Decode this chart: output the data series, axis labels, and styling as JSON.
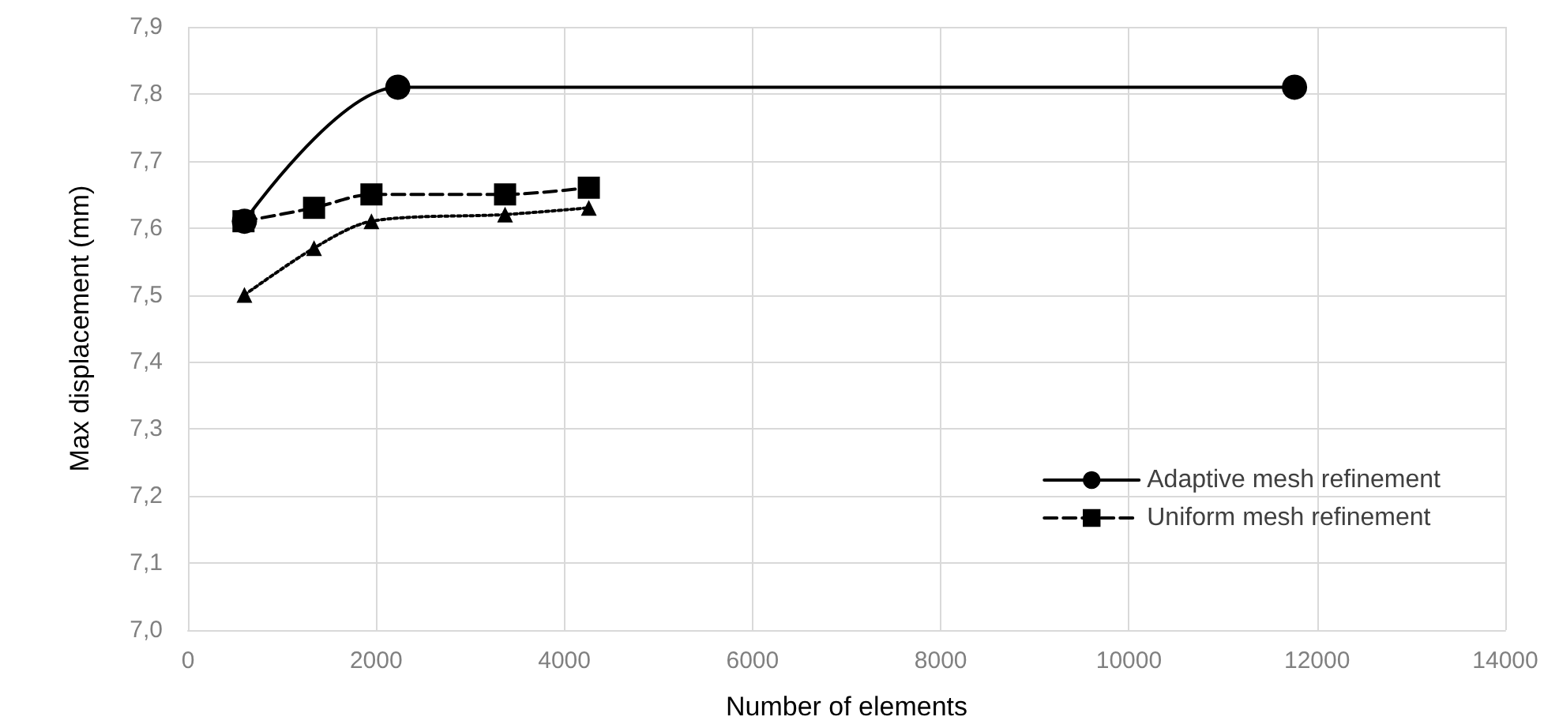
{
  "chart_data": {
    "type": "line",
    "xlabel": "Number of elements",
    "ylabel": "Max displacement (mm)",
    "xlim": [
      0,
      14000
    ],
    "xticks": [
      0,
      2000,
      4000,
      6000,
      8000,
      10000,
      12000,
      14000
    ],
    "ylim": [
      7.0,
      7.9
    ],
    "yticks": [
      {
        "value": 7.0,
        "label": "7,0"
      },
      {
        "value": 7.1,
        "label": "7,1"
      },
      {
        "value": 7.2,
        "label": "7,2"
      },
      {
        "value": 7.3,
        "label": "7,3"
      },
      {
        "value": 7.4,
        "label": "7,4"
      },
      {
        "value": 7.5,
        "label": "7,5"
      },
      {
        "value": 7.6,
        "label": "7,6"
      },
      {
        "value": 7.7,
        "label": "7,7"
      },
      {
        "value": 7.8,
        "label": "7,8"
      },
      {
        "value": 7.9,
        "label": "7,9"
      }
    ],
    "grid": true,
    "legend": "bottom right",
    "series": [
      {
        "name": "Adaptive mesh refinement",
        "color": "#000000",
        "marker": "circle",
        "line_style": "solid",
        "x": [
          600,
          2230,
          11760
        ],
        "values": [
          7.61,
          7.81,
          7.81
        ]
      },
      {
        "name": "Uniform mesh refinement",
        "color": "#000000",
        "marker": "square",
        "line_style": "dashed",
        "x": [
          590,
          1340,
          1950,
          3370,
          4260
        ],
        "values": [
          7.61,
          7.63,
          7.65,
          7.65,
          7.66
        ]
      },
      {
        "color": "#000000",
        "marker": "triangle",
        "line_style": "dotted",
        "x": [
          600,
          1340,
          1950,
          3370,
          4260
        ],
        "values": [
          7.5,
          7.57,
          7.61,
          7.62,
          7.63
        ]
      }
    ]
  }
}
